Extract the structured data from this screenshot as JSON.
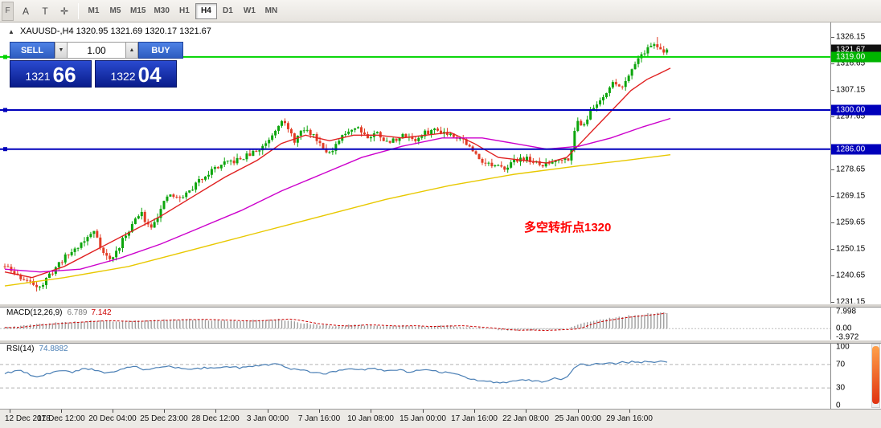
{
  "toolbar": {
    "corner_label": "F",
    "tools": [
      {
        "name": "cursor-tool",
        "glyph": "A"
      },
      {
        "name": "text-tool",
        "glyph": "T"
      },
      {
        "name": "crosshair-tool",
        "glyph": "✛"
      }
    ],
    "timeframes": [
      {
        "label": "M1",
        "active": false
      },
      {
        "label": "M5",
        "active": false
      },
      {
        "label": "M15",
        "active": false
      },
      {
        "label": "M30",
        "active": false
      },
      {
        "label": "H1",
        "active": false
      },
      {
        "label": "H4",
        "active": true
      },
      {
        "label": "D1",
        "active": false
      },
      {
        "label": "W1",
        "active": false
      },
      {
        "label": "MN",
        "active": false
      }
    ]
  },
  "header": {
    "symbol_line": "XAUUSD-,H4 1320.95 1321.69 1320.17 1321.67"
  },
  "one_click": {
    "sell": "SELL",
    "buy": "BUY",
    "volume": "1.00",
    "bid": {
      "main": "1321",
      "pips": "66"
    },
    "ask": {
      "main": "1322",
      "pips": "04"
    }
  },
  "icons": {
    "collapse_triangle": "▲",
    "spinner_down": "▼",
    "spinner_up": "▲"
  },
  "annotation": {
    "text": "多空转折点1320",
    "color": "#ff0000"
  },
  "indicators": {
    "macd": {
      "name": "MACD(12,26,9)",
      "main": "6.789",
      "signal": "7.142"
    },
    "rsi": {
      "name": "RSI(14)",
      "value": "74.8882"
    }
  },
  "chart_data": {
    "type": "candlestick",
    "symbol": "XAUUSD-",
    "timeframe": "H4",
    "ohlc_current": {
      "open": 1320.95,
      "high": 1321.69,
      "low": 1320.17,
      "close": 1321.67
    },
    "last_price": 1321.67,
    "colors": {
      "up": "#0ca50c",
      "down": "#e23b24",
      "hline_green": "#00c400",
      "hline_blue": "#0000bb",
      "macd_hist": "#9e9e9e",
      "macd_signal": "#cc0000",
      "rsi": "#4a7fb5"
    },
    "price_axis": {
      "min": 1231.15,
      "max": 1326.15,
      "ticks": [
        "1326.15",
        "1316.65",
        "1307.15",
        "1297.65",
        "1278.65",
        "1269.15",
        "1259.65",
        "1250.15",
        "1240.65",
        "1231.15"
      ]
    },
    "price_badges": [
      {
        "label": "1321.67",
        "price": 1321.67,
        "bg": "#101010"
      },
      {
        "label": "1319.00",
        "price": 1319.0,
        "bg": "#00b400"
      },
      {
        "label": "1300.00",
        "price": 1300.0,
        "bg": "#0000bb"
      },
      {
        "label": "1286.00",
        "price": 1286.0,
        "bg": "#0000bb"
      }
    ],
    "hlines": [
      {
        "price": 1319.0,
        "color": "#00d400"
      },
      {
        "price": 1300.0,
        "color": "#0000bb"
      },
      {
        "price": 1286.0,
        "color": "#0000bb"
      }
    ],
    "price_path": [
      [
        6,
        1244
      ],
      [
        20,
        1241
      ],
      [
        38,
        1238
      ],
      [
        52,
        1237
      ],
      [
        62,
        1241
      ],
      [
        76,
        1246
      ],
      [
        92,
        1250
      ],
      [
        108,
        1254
      ],
      [
        118,
        1257
      ],
      [
        128,
        1249
      ],
      [
        138,
        1246
      ],
      [
        152,
        1253
      ],
      [
        166,
        1260
      ],
      [
        176,
        1263
      ],
      [
        186,
        1258
      ],
      [
        198,
        1263
      ],
      [
        210,
        1270
      ],
      [
        222,
        1268
      ],
      [
        236,
        1271
      ],
      [
        252,
        1276
      ],
      [
        266,
        1279
      ],
      [
        282,
        1281
      ],
      [
        296,
        1282
      ],
      [
        310,
        1284
      ],
      [
        324,
        1286
      ],
      [
        338,
        1291
      ],
      [
        350,
        1297
      ],
      [
        356,
        1294
      ],
      [
        366,
        1289
      ],
      [
        378,
        1293
      ],
      [
        390,
        1291
      ],
      [
        402,
        1287
      ],
      [
        412,
        1284
      ],
      [
        422,
        1289
      ],
      [
        434,
        1293
      ],
      [
        446,
        1294
      ],
      [
        458,
        1290
      ],
      [
        470,
        1292
      ],
      [
        482,
        1288
      ],
      [
        494,
        1290
      ],
      [
        506,
        1291
      ],
      [
        518,
        1289
      ],
      [
        530,
        1292
      ],
      [
        542,
        1293
      ],
      [
        554,
        1292
      ],
      [
        566,
        1291
      ],
      [
        578,
        1289
      ],
      [
        588,
        1285
      ],
      [
        600,
        1282
      ],
      [
        612,
        1280
      ],
      [
        624,
        1279
      ],
      [
        636,
        1281
      ],
      [
        648,
        1283
      ],
      [
        660,
        1282
      ],
      [
        672,
        1280
      ],
      [
        684,
        1281
      ],
      [
        696,
        1283
      ],
      [
        706,
        1282
      ],
      [
        712,
        1288
      ],
      [
        718,
        1296
      ],
      [
        726,
        1295
      ],
      [
        734,
        1299
      ],
      [
        742,
        1302
      ],
      [
        750,
        1305
      ],
      [
        758,
        1308
      ],
      [
        766,
        1310
      ],
      [
        774,
        1308
      ],
      [
        782,
        1313
      ],
      [
        790,
        1317
      ],
      [
        798,
        1320
      ],
      [
        806,
        1322
      ],
      [
        814,
        1324
      ],
      [
        820,
        1322
      ],
      [
        826,
        1320
      ],
      [
        832,
        1321.7
      ]
    ],
    "moving_averages": [
      {
        "name": "fast-ma",
        "color": "#e02020",
        "points": [
          [
            6,
            1242
          ],
          [
            40,
            1240
          ],
          [
            80,
            1244
          ],
          [
            120,
            1250
          ],
          [
            160,
            1256
          ],
          [
            200,
            1262
          ],
          [
            240,
            1269
          ],
          [
            280,
            1276
          ],
          [
            320,
            1282
          ],
          [
            350,
            1288
          ],
          [
            380,
            1291
          ],
          [
            410,
            1289
          ],
          [
            440,
            1291
          ],
          [
            470,
            1291
          ],
          [
            500,
            1290
          ],
          [
            530,
            1291
          ],
          [
            560,
            1292
          ],
          [
            590,
            1288
          ],
          [
            620,
            1283
          ],
          [
            650,
            1282
          ],
          [
            680,
            1281
          ],
          [
            705,
            1283
          ],
          [
            725,
            1289
          ],
          [
            745,
            1295
          ],
          [
            765,
            1301
          ],
          [
            785,
            1307
          ],
          [
            805,
            1311
          ],
          [
            820,
            1313
          ],
          [
            834,
            1315
          ]
        ]
      },
      {
        "name": "mid-ma",
        "color": "#cc00cc",
        "points": [
          [
            6,
            1243
          ],
          [
            50,
            1242
          ],
          [
            100,
            1243
          ],
          [
            150,
            1247
          ],
          [
            200,
            1252
          ],
          [
            250,
            1258
          ],
          [
            300,
            1264
          ],
          [
            350,
            1271
          ],
          [
            400,
            1277
          ],
          [
            450,
            1283
          ],
          [
            500,
            1287
          ],
          [
            550,
            1290
          ],
          [
            600,
            1290
          ],
          [
            640,
            1288
          ],
          [
            680,
            1286
          ],
          [
            720,
            1287
          ],
          [
            760,
            1290
          ],
          [
            800,
            1294
          ],
          [
            834,
            1297
          ]
        ]
      },
      {
        "name": "slow-ma",
        "color": "#e8c800",
        "points": [
          [
            6,
            1237
          ],
          [
            80,
            1240
          ],
          [
            160,
            1244
          ],
          [
            240,
            1250
          ],
          [
            320,
            1256
          ],
          [
            400,
            1262
          ],
          [
            480,
            1268
          ],
          [
            560,
            1273
          ],
          [
            640,
            1277
          ],
          [
            720,
            1280
          ],
          [
            780,
            1282
          ],
          [
            834,
            1284
          ]
        ]
      }
    ],
    "macd": {
      "label": "MACD(12,26,9)",
      "main_value": 6.789,
      "signal_value": 7.142,
      "range": [
        -4.5,
        8.5
      ],
      "axis_labels": [
        {
          "label": "7.998",
          "value": 7.998
        },
        {
          "label": "0.00",
          "value": 0.0
        },
        {
          "label": "-3.972",
          "value": -3.972
        }
      ],
      "path": [
        [
          6,
          0.5
        ],
        [
          30,
          1.5
        ],
        [
          60,
          2.5
        ],
        [
          90,
          3.2
        ],
        [
          120,
          3.8
        ],
        [
          150,
          3.4
        ],
        [
          180,
          3.8
        ],
        [
          210,
          4.2
        ],
        [
          240,
          4.4
        ],
        [
          270,
          4.0
        ],
        [
          300,
          3.6
        ],
        [
          330,
          4.2
        ],
        [
          345,
          4.6
        ],
        [
          360,
          3.8
        ],
        [
          380,
          2.4
        ],
        [
          400,
          1.6
        ],
        [
          420,
          1.2
        ],
        [
          440,
          1.8
        ],
        [
          460,
          1.6
        ],
        [
          480,
          1.2
        ],
        [
          500,
          1.4
        ],
        [
          520,
          1.0
        ],
        [
          540,
          1.2
        ],
        [
          560,
          1.4
        ],
        [
          580,
          0.8
        ],
        [
          600,
          0.2
        ],
        [
          615,
          -0.4
        ],
        [
          630,
          -0.8
        ],
        [
          645,
          -0.6
        ],
        [
          660,
          -0.9
        ],
        [
          675,
          -0.7
        ],
        [
          690,
          -0.4
        ],
        [
          700,
          -0.3
        ],
        [
          710,
          0.6
        ],
        [
          718,
          1.8
        ],
        [
          726,
          2.8
        ],
        [
          736,
          3.6
        ],
        [
          746,
          4.2
        ],
        [
          756,
          4.8
        ],
        [
          766,
          5.4
        ],
        [
          776,
          5.8
        ],
        [
          786,
          6.2
        ],
        [
          796,
          6.6
        ],
        [
          806,
          7.0
        ],
        [
          816,
          7.4
        ],
        [
          826,
          7.6
        ],
        [
          832,
          7.2
        ]
      ]
    },
    "rsi": {
      "label": "RSI(14)",
      "value": 74.8882,
      "levels": [
        70,
        30
      ],
      "range": [
        0,
        100
      ],
      "axis_labels": [
        {
          "label": "100",
          "value": 100
        },
        {
          "label": "70",
          "value": 70
        },
        {
          "label": "30",
          "value": 30
        },
        {
          "label": "0",
          "value": 0
        }
      ],
      "path": [
        [
          6,
          55
        ],
        [
          25,
          60
        ],
        [
          45,
          48
        ],
        [
          60,
          54
        ],
        [
          75,
          60
        ],
        [
          90,
          56
        ],
        [
          105,
          64
        ],
        [
          120,
          60
        ],
        [
          135,
          55
        ],
        [
          150,
          62
        ],
        [
          165,
          67
        ],
        [
          180,
          61
        ],
        [
          195,
          64
        ],
        [
          210,
          67
        ],
        [
          225,
          63
        ],
        [
          240,
          61
        ],
        [
          255,
          65
        ],
        [
          270,
          63
        ],
        [
          285,
          66
        ],
        [
          300,
          64
        ],
        [
          315,
          67
        ],
        [
          330,
          69
        ],
        [
          345,
          72
        ],
        [
          360,
          63
        ],
        [
          375,
          60
        ],
        [
          390,
          57
        ],
        [
          405,
          54
        ],
        [
          420,
          60
        ],
        [
          435,
          64
        ],
        [
          450,
          61
        ],
        [
          465,
          63
        ],
        [
          480,
          58
        ],
        [
          495,
          61
        ],
        [
          510,
          57
        ],
        [
          525,
          61
        ],
        [
          540,
          59
        ],
        [
          555,
          56
        ],
        [
          570,
          52
        ],
        [
          585,
          45
        ],
        [
          600,
          42
        ],
        [
          615,
          40
        ],
        [
          630,
          39
        ],
        [
          645,
          44
        ],
        [
          660,
          43
        ],
        [
          675,
          41
        ],
        [
          690,
          46
        ],
        [
          700,
          45
        ],
        [
          708,
          52
        ],
        [
          716,
          66
        ],
        [
          724,
          71
        ],
        [
          732,
          69
        ],
        [
          740,
          72
        ],
        [
          748,
          70
        ],
        [
          756,
          73
        ],
        [
          764,
          71
        ],
        [
          772,
          74
        ],
        [
          780,
          72
        ],
        [
          788,
          76
        ],
        [
          796,
          73
        ],
        [
          804,
          76
        ],
        [
          812,
          73
        ],
        [
          820,
          75
        ],
        [
          828,
          74
        ],
        [
          832,
          74.9
        ]
      ]
    },
    "time_ticks": [
      [
        12,
        "12 Dec 2018"
      ],
      [
        76,
        "17 Dec 12:00"
      ],
      [
        140,
        "20 Dec 04:00"
      ],
      [
        204,
        "25 Dec 23:00"
      ],
      [
        268,
        "28 Dec 12:00"
      ],
      [
        333,
        "3 Jan 00:00"
      ],
      [
        397,
        "7 Jan 16:00"
      ],
      [
        461,
        "10 Jan 08:00"
      ],
      [
        526,
        "15 Jan 00:00"
      ],
      [
        590,
        "17 Jan 16:00"
      ],
      [
        654,
        "22 Jan 08:00"
      ],
      [
        719,
        "25 Jan 00:00"
      ],
      [
        783,
        "29 Jan 16:00"
      ]
    ]
  }
}
